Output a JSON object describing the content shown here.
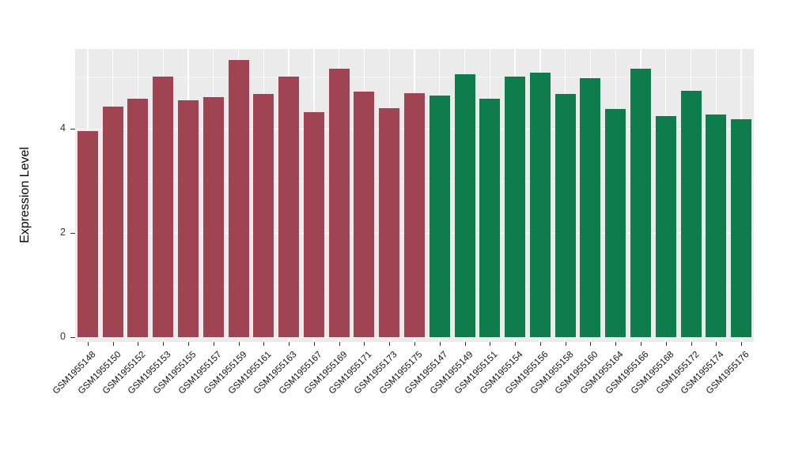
{
  "chart_data": {
    "type": "bar",
    "title": "",
    "xlabel": "",
    "ylabel": "Expression Level",
    "categories": [
      "GSM1955148",
      "GSM1955150",
      "GSM1955152",
      "GSM1955153",
      "GSM1955155",
      "GSM1955157",
      "GSM1955159",
      "GSM1955161",
      "GSM1955163",
      "GSM1955167",
      "GSM1955169",
      "GSM1955171",
      "GSM1955173",
      "GSM1955175",
      "GSM1955147",
      "GSM1955149",
      "GSM1955151",
      "GSM1955154",
      "GSM1955156",
      "GSM1955158",
      "GSM1955160",
      "GSM1955164",
      "GSM1955166",
      "GSM1955168",
      "GSM1955172",
      "GSM1955174",
      "GSM1955176"
    ],
    "values": [
      3.95,
      4.42,
      4.58,
      5.0,
      4.55,
      4.6,
      5.32,
      4.67,
      5.0,
      4.32,
      5.15,
      4.72,
      4.4,
      4.68,
      4.63,
      5.05,
      4.57,
      5.0,
      5.08,
      4.66,
      4.97,
      4.38,
      5.15,
      4.25,
      4.73,
      4.28,
      4.18
    ],
    "groups": [
      "group1",
      "group1",
      "group1",
      "group1",
      "group1",
      "group1",
      "group1",
      "group1",
      "group1",
      "group1",
      "group1",
      "group1",
      "group1",
      "group1",
      "group2",
      "group2",
      "group2",
      "group2",
      "group2",
      "group2",
      "group2",
      "group2",
      "group2",
      "group2",
      "group2",
      "group2",
      "group2"
    ],
    "group_colors": {
      "group1": "#A04352",
      "group2": "#0E7C4B"
    },
    "yticks": [
      0,
      2,
      4
    ],
    "minor_yticks": [
      1,
      3,
      5
    ],
    "ylim": [
      0,
      5.6
    ],
    "grid": true,
    "legend": "none",
    "panel_bg": "#EBEBEB",
    "grid_color": "#FFFFFF",
    "axis_text_color": "#333333"
  }
}
